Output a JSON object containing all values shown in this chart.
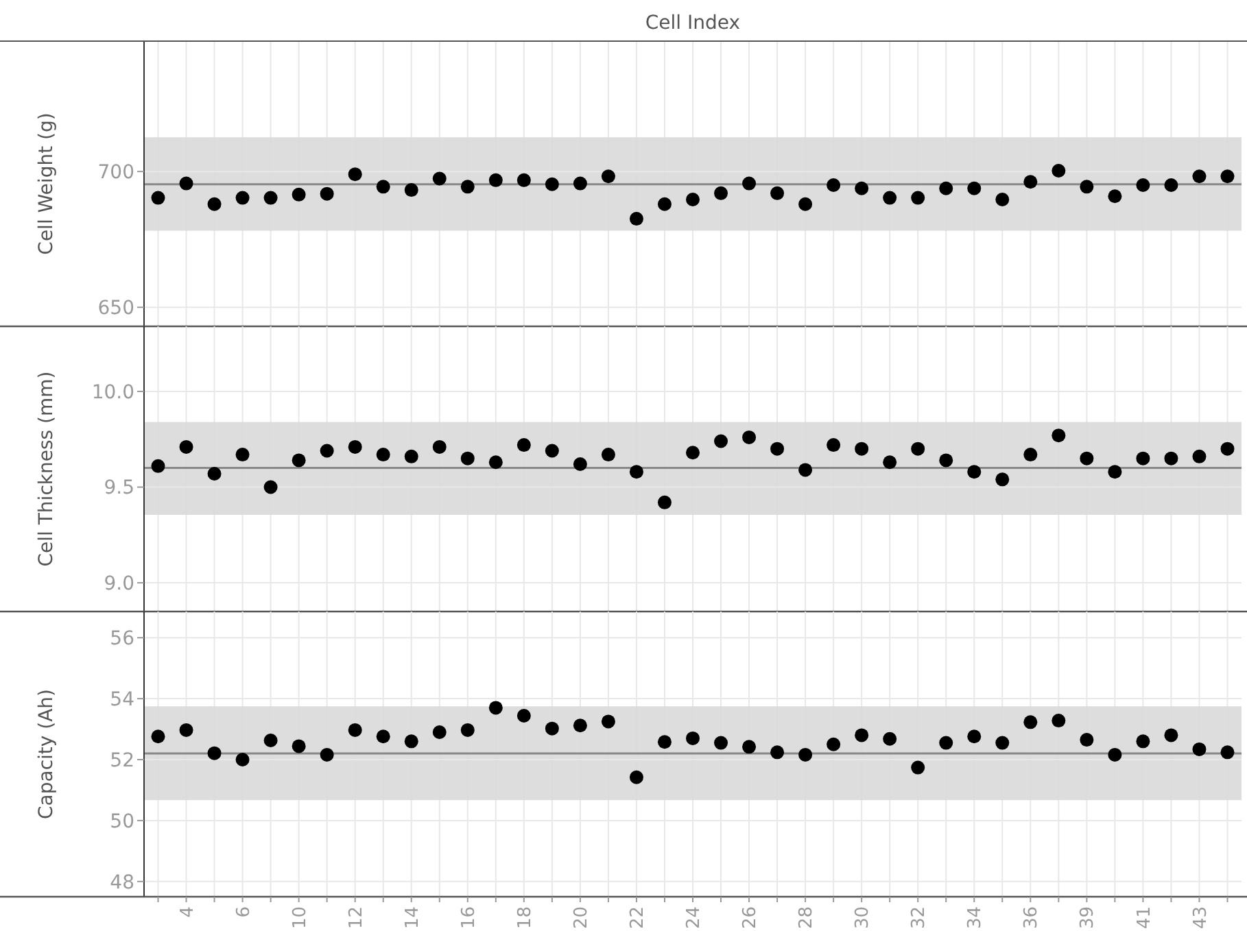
{
  "chart_data": [
    {
      "type": "scatter",
      "xlabel": "Cell Index",
      "ylabel": "Cell Weight (g)",
      "categories": [
        null,
        null,
        null,
        null,
        null,
        null,
        null,
        null,
        null,
        null,
        null,
        null,
        null,
        null,
        null,
        null,
        null,
        null,
        null,
        null,
        null,
        null,
        null,
        null,
        null,
        null,
        null,
        null,
        null,
        null,
        null,
        null,
        null,
        null,
        null,
        null,
        null,
        null,
        null
      ],
      "values": [
        690.3,
        695.6,
        688,
        690.3,
        690.3,
        691.5,
        691.8,
        699,
        694.4,
        693.2,
        697.4,
        694.4,
        696.8,
        696.8,
        695.3,
        695.6,
        698.2,
        682.6,
        688,
        689.7,
        692,
        695.6,
        692,
        688,
        695,
        693.8,
        690.3,
        690.3,
        693.8,
        693.8,
        689.7,
        696.2,
        700.3,
        694.4,
        690.9,
        695,
        695,
        698.2,
        698.2
      ],
      "color": "#000000",
      "marker": "circle",
      "ylim": [
        643,
        748
      ],
      "yticks": [
        650,
        700
      ],
      "grid": true,
      "tick_labels": "y",
      "ref_lines": [
        {
          "axis": "y",
          "value": 695.3,
          "color": "#888888"
        }
      ],
      "bands": [
        {
          "axis": "y",
          "from": 678.2,
          "to": 712.6,
          "color": "#d9d9d9"
        }
      ]
    },
    {
      "type": "scatter",
      "ylabel": "Cell Thickness (mm)",
      "categories": [
        null,
        null,
        null,
        null,
        null,
        null,
        null,
        null,
        null,
        null,
        null,
        null,
        null,
        null,
        null,
        null,
        null,
        null,
        null,
        null,
        null,
        null,
        null,
        null,
        null,
        null,
        null,
        null,
        null,
        null,
        null,
        null,
        null,
        null,
        null,
        null,
        null,
        null,
        null
      ],
      "values": [
        9.61,
        9.71,
        9.57,
        9.67,
        9.5,
        9.64,
        9.69,
        9.71,
        9.67,
        9.66,
        9.71,
        9.65,
        9.63,
        9.72,
        9.69,
        9.62,
        9.67,
        9.58,
        9.42,
        9.68,
        9.74,
        9.76,
        9.7,
        9.59,
        9.72,
        9.7,
        9.63,
        9.7,
        9.64,
        9.58,
        9.54,
        9.67,
        9.77,
        9.65,
        9.58,
        9.65,
        9.65,
        9.66,
        9.7
      ],
      "color": "#000000",
      "marker": "circle",
      "ylim": [
        8.85,
        10.34
      ],
      "yticks": [
        {
          "value": 9,
          "label": "9.0"
        },
        9.5,
        {
          "value": 10,
          "label": "10.0"
        }
      ],
      "grid": true,
      "tick_labels": "y",
      "ref_lines": [
        {
          "axis": "y",
          "value": 9.6,
          "color": "#888888"
        }
      ],
      "bands": [
        {
          "axis": "y",
          "from": 9.355,
          "to": 9.84,
          "color": "#d9d9d9"
        }
      ]
    },
    {
      "type": "scatter",
      "ylabel": "Capacity (Ah)",
      "categories": [
        null,
        "4",
        null,
        "6",
        null,
        "10",
        null,
        "12",
        null,
        "14",
        null,
        "16",
        null,
        "18",
        null,
        "20",
        null,
        "22",
        null,
        "24",
        null,
        "26",
        null,
        "28",
        null,
        "30",
        null,
        "32",
        null,
        "34",
        null,
        "36",
        null,
        "39",
        null,
        "41",
        null,
        "43",
        null
      ],
      "values": [
        52.76,
        52.97,
        52.21,
        52.0,
        52.63,
        52.44,
        52.16,
        52.97,
        52.76,
        52.6,
        52.9,
        52.97,
        53.7,
        53.44,
        53.02,
        53.12,
        53.25,
        51.42,
        52.58,
        52.7,
        52.55,
        52.42,
        52.24,
        52.16,
        52.5,
        52.8,
        52.68,
        51.74,
        52.55,
        52.76,
        52.55,
        53.23,
        53.28,
        52.65,
        52.16,
        52.6,
        52.8,
        52.34,
        52.24
      ],
      "color": "#000000",
      "marker": "circle",
      "ylim": [
        47.5,
        56.86
      ],
      "yticks": [
        48,
        50,
        52,
        54,
        56
      ],
      "grid": true,
      "ref_lines": [
        {
          "axis": "y",
          "value": 52.2,
          "color": "#888888"
        }
      ],
      "bands": [
        {
          "axis": "y",
          "from": 50.67,
          "to": 53.75,
          "color": "#d9d9d9"
        }
      ]
    }
  ]
}
